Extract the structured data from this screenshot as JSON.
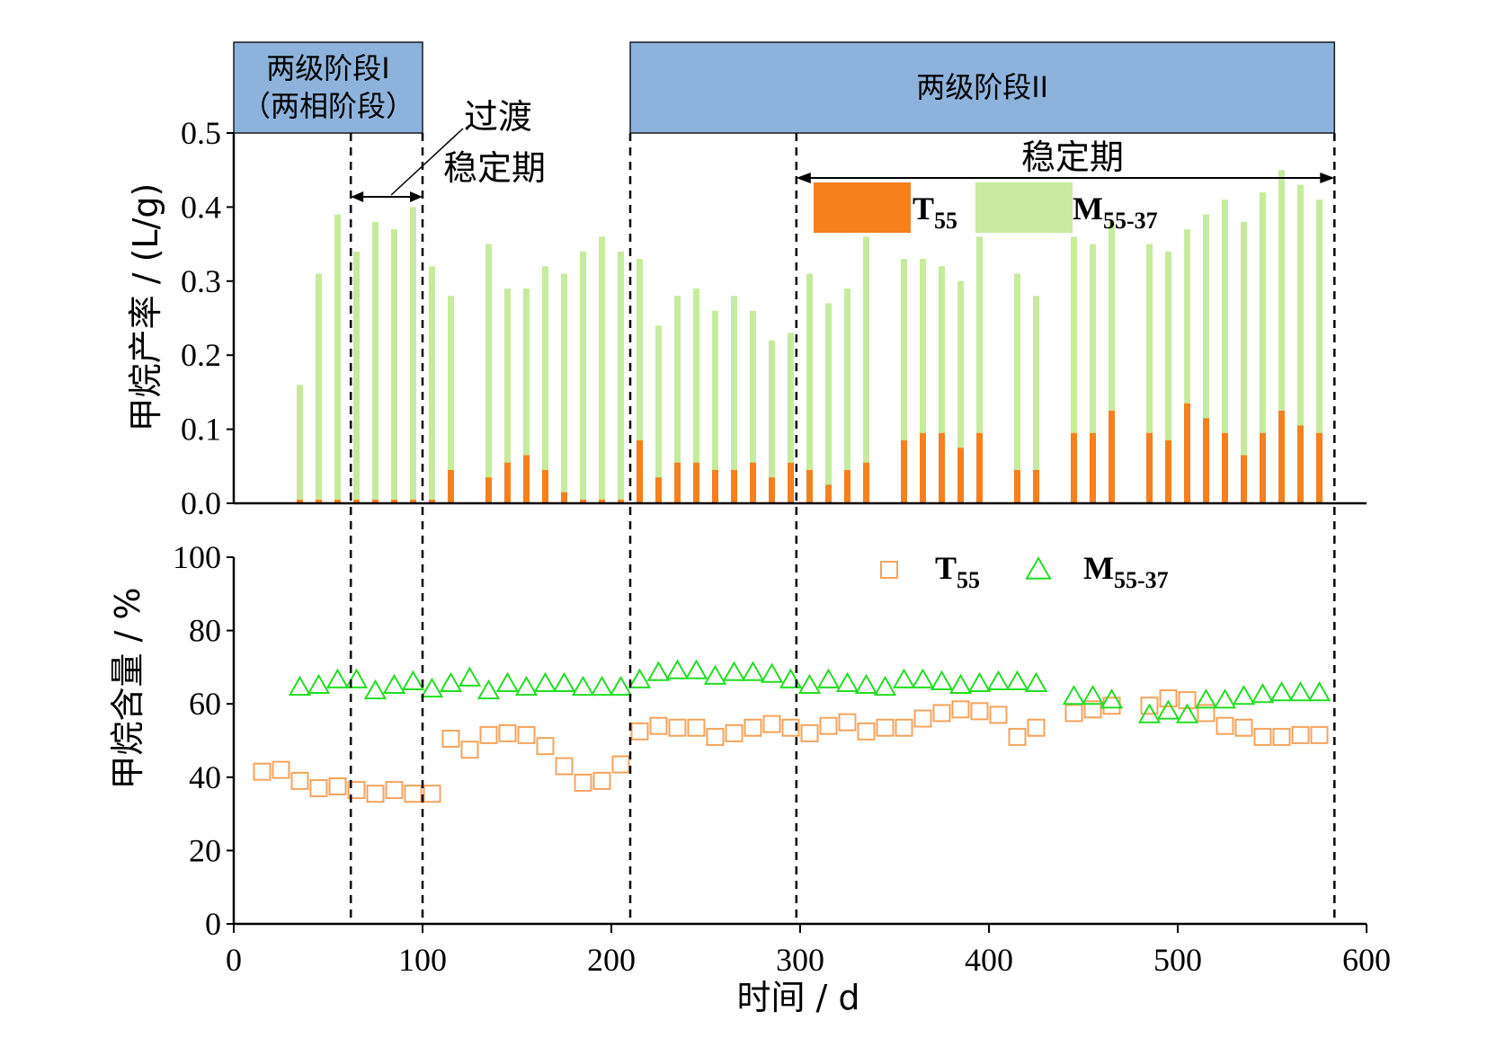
{
  "chart_data": [
    {
      "type": "bar",
      "stacked": true,
      "ylabel": "甲烷产率 / (L/g)",
      "ylim": [
        0,
        0.5
      ],
      "yticks": [
        "0.0",
        "0.1",
        "0.2",
        "0.3",
        "0.4",
        "0.5"
      ],
      "xlim": [
        0,
        600
      ],
      "x": [
        35,
        45,
        55,
        65,
        75,
        85,
        95,
        105,
        115,
        135,
        145,
        155,
        165,
        175,
        185,
        195,
        205,
        215,
        225,
        235,
        245,
        255,
        265,
        275,
        285,
        295,
        305,
        315,
        325,
        335,
        355,
        365,
        375,
        385,
        395,
        415,
        425,
        445,
        455,
        465,
        485,
        495,
        505,
        515,
        525,
        535,
        545,
        555,
        565,
        575
      ],
      "series": [
        {
          "name": "T55",
          "color": "#f5801c",
          "values": [
            0.005,
            0.005,
            0.005,
            0.005,
            0.005,
            0.005,
            0.005,
            0.005,
            0.045,
            0.035,
            0.055,
            0.065,
            0.045,
            0.015,
            0.005,
            0.005,
            0.005,
            0.085,
            0.035,
            0.055,
            0.055,
            0.045,
            0.045,
            0.055,
            0.035,
            0.055,
            0.045,
            0.025,
            0.045,
            0.055,
            0.085,
            0.095,
            0.095,
            0.075,
            0.095,
            0.045,
            0.045,
            0.095,
            0.095,
            0.125,
            0.095,
            0.085,
            0.135,
            0.115,
            0.095,
            0.065,
            0.095,
            0.125,
            0.105,
            0.095
          ]
        },
        {
          "name": "M55-37",
          "color": "#c6eb9c",
          "values": [
            0.155,
            0.305,
            0.385,
            0.335,
            0.375,
            0.365,
            0.395,
            0.315,
            0.235,
            0.315,
            0.235,
            0.225,
            0.275,
            0.295,
            0.335,
            0.355,
            0.335,
            0.245,
            0.205,
            0.225,
            0.235,
            0.215,
            0.235,
            0.205,
            0.185,
            0.175,
            0.265,
            0.245,
            0.245,
            0.305,
            0.245,
            0.235,
            0.225,
            0.225,
            0.265,
            0.265,
            0.235,
            0.265,
            0.255,
            0.255,
            0.255,
            0.255,
            0.235,
            0.275,
            0.315,
            0.315,
            0.325,
            0.325,
            0.325,
            0.315
          ]
        }
      ],
      "legend_labels": [
        {
          "main": "T",
          "sub": "55"
        },
        {
          "main": "M",
          "sub": "55-37"
        }
      ]
    },
    {
      "type": "scatter",
      "ylabel": "甲烷含量 / %",
      "xlabel": "时间 / d",
      "ylim": [
        0,
        100
      ],
      "yticks": [
        "0",
        "20",
        "40",
        "60",
        "80",
        "100"
      ],
      "xlim": [
        0,
        600
      ],
      "xticks": [
        "0",
        "100",
        "200",
        "300",
        "400",
        "500",
        "600"
      ],
      "series": [
        {
          "name": "T55",
          "marker": "square",
          "color": "#f5a35c",
          "points": [
            [
              15,
              41.5
            ],
            [
              25,
              42
            ],
            [
              35,
              39
            ],
            [
              45,
              37
            ],
            [
              55,
              37.5
            ],
            [
              65,
              36.5
            ],
            [
              75,
              35.5
            ],
            [
              85,
              36.5
            ],
            [
              95,
              35.5
            ],
            [
              105,
              35.5
            ],
            [
              115,
              50.5
            ],
            [
              125,
              47.5
            ],
            [
              135,
              51.5
            ],
            [
              145,
              52
            ],
            [
              155,
              51.5
            ],
            [
              165,
              48.5
            ],
            [
              175,
              43
            ],
            [
              185,
              38.5
            ],
            [
              195,
              39
            ],
            [
              205,
              43.5
            ],
            [
              215,
              52.5
            ],
            [
              225,
              54
            ],
            [
              235,
              53.5
            ],
            [
              245,
              53.5
            ],
            [
              255,
              51
            ],
            [
              265,
              52
            ],
            [
              275,
              53.5
            ],
            [
              285,
              54.5
            ],
            [
              295,
              53.5
            ],
            [
              305,
              52
            ],
            [
              315,
              54
            ],
            [
              325,
              55
            ],
            [
              335,
              52.5
            ],
            [
              345,
              53.5
            ],
            [
              355,
              53.5
            ],
            [
              365,
              56
            ],
            [
              375,
              57.5
            ],
            [
              385,
              58.5
            ],
            [
              395,
              58
            ],
            [
              405,
              57
            ],
            [
              415,
              51
            ],
            [
              425,
              53.5
            ],
            [
              445,
              57.5
            ],
            [
              455,
              58.5
            ],
            [
              465,
              59.5
            ],
            [
              485,
              59.5
            ],
            [
              495,
              61.5
            ],
            [
              505,
              61
            ],
            [
              515,
              57.5
            ],
            [
              525,
              54
            ],
            [
              535,
              53.5
            ],
            [
              545,
              51
            ],
            [
              555,
              51
            ],
            [
              565,
              51.5
            ],
            [
              575,
              51.5
            ]
          ]
        },
        {
          "name": "M55-37",
          "marker": "triangle",
          "color": "#22dd22",
          "points": [
            [
              35,
              64.5
            ],
            [
              45,
              65
            ],
            [
              55,
              66.5
            ],
            [
              65,
              66.5
            ],
            [
              75,
              63.5
            ],
            [
              85,
              65
            ],
            [
              95,
              66
            ],
            [
              105,
              64
            ],
            [
              115,
              65.5
            ],
            [
              125,
              67
            ],
            [
              135,
              63.5
            ],
            [
              145,
              65.5
            ],
            [
              155,
              64.5
            ],
            [
              165,
              65.5
            ],
            [
              175,
              65.5
            ],
            [
              185,
              64.5
            ],
            [
              195,
              64.5
            ],
            [
              205,
              64.5
            ],
            [
              215,
              66.5
            ],
            [
              225,
              68.5
            ],
            [
              235,
              69
            ],
            [
              245,
              69
            ],
            [
              255,
              67.5
            ],
            [
              265,
              68.5
            ],
            [
              275,
              68.5
            ],
            [
              285,
              68
            ],
            [
              295,
              66.5
            ],
            [
              305,
              65
            ],
            [
              315,
              66.5
            ],
            [
              325,
              65.5
            ],
            [
              335,
              65
            ],
            [
              345,
              64.5
            ],
            [
              355,
              66.5
            ],
            [
              365,
              66.5
            ],
            [
              375,
              66
            ],
            [
              385,
              65
            ],
            [
              395,
              65.5
            ],
            [
              405,
              66
            ],
            [
              415,
              66
            ],
            [
              425,
              65.5
            ],
            [
              445,
              62
            ],
            [
              455,
              62
            ],
            [
              465,
              61
            ],
            [
              485,
              57
            ],
            [
              495,
              58
            ],
            [
              505,
              57
            ],
            [
              515,
              61
            ],
            [
              525,
              61
            ],
            [
              535,
              62
            ],
            [
              545,
              62.5
            ],
            [
              555,
              63
            ],
            [
              565,
              63
            ],
            [
              575,
              63
            ]
          ]
        }
      ],
      "legend_labels": [
        {
          "main": "T",
          "sub": "55"
        },
        {
          "main": "M",
          "sub": "55-37"
        }
      ]
    }
  ],
  "phases": [
    {
      "line1": "两级阶段I",
      "line2": "（两相阶段）",
      "x_range": [
        0,
        100
      ]
    },
    {
      "line1": "两级阶段II",
      "x_range": [
        210,
        583
      ]
    }
  ],
  "dividers_x": [
    62,
    100,
    210,
    298,
    583
  ],
  "annotations": {
    "transition_line1": "过渡",
    "transition_line2": "稳定期",
    "stable": "稳定期"
  }
}
